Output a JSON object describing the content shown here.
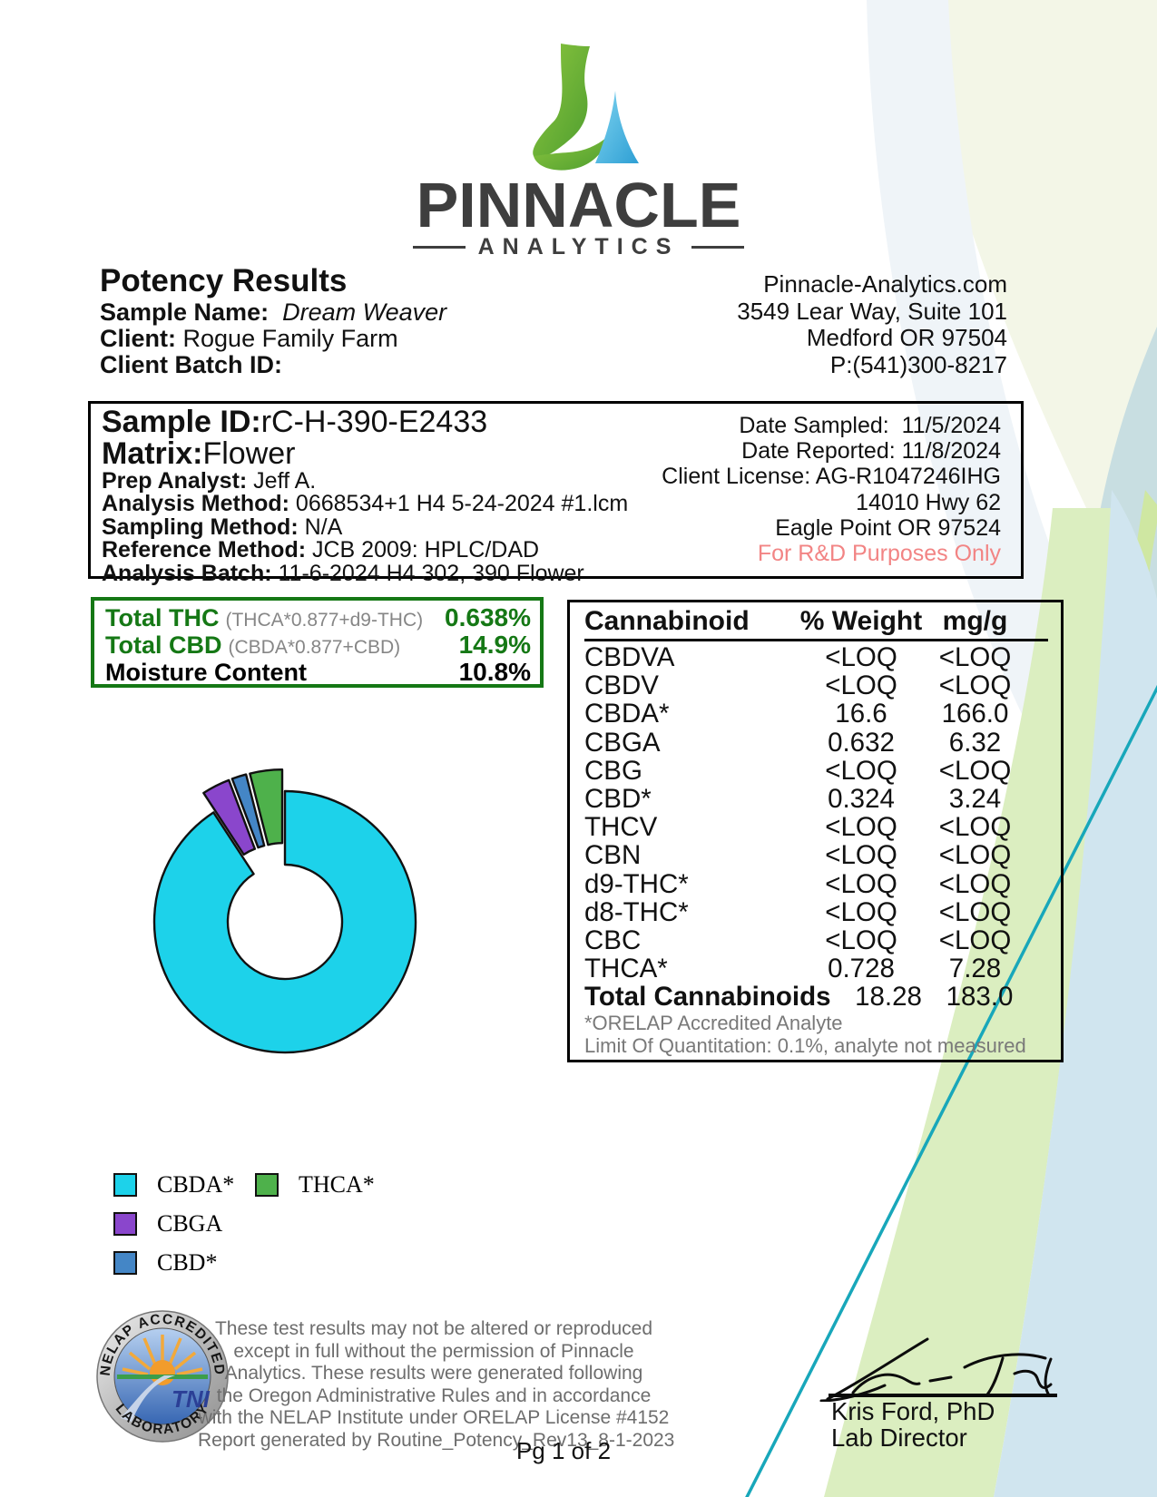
{
  "logo": {
    "line1": "PINNACLE",
    "line2": "ANALYTICS"
  },
  "header": {
    "title": "Potency Results",
    "sample_name_label": "Sample Name:",
    "sample_name": "Dream Weaver",
    "client_label": "Client:",
    "client": "Rogue Family Farm",
    "client_batch_label": "Client Batch ID:",
    "contact": {
      "website": "Pinnacle-Analytics.com",
      "address1": "3549 Lear Way, Suite 101",
      "address2": "Medford OR 97504",
      "phone": "P:(541)300-8217"
    }
  },
  "sample_info": {
    "sample_id_label": "Sample ID:",
    "sample_id": "rC-H-390-E2433",
    "matrix_label": "Matrix:",
    "matrix": "Flower",
    "left_small_lines": [
      {
        "label": "Prep Analyst:",
        "value": " Jeff A."
      },
      {
        "label": "Analysis Method:",
        "value": " 0668534+1 H4 5-24-2024 #1.lcm"
      },
      {
        "label": "Sampling Method:",
        "value": " N/A"
      },
      {
        "label": "Reference Method:",
        "value": " JCB 2009: HPLC/DAD"
      },
      {
        "label": "Analysis Batch:",
        "value": " 11-6-2024 H4 302, 390 Flower"
      }
    ],
    "right_lines": [
      {
        "text": "Date Sampled:  11/5/2024"
      },
      {
        "text": "Date Reported: 11/8/2024"
      },
      {
        "text": "Client License: AG-R1047246IHG"
      },
      {
        "text": "14010 Hwy 62"
      },
      {
        "text": "Eagle Point OR 97524"
      },
      {
        "text": "For R&D Purposes Only",
        "color": "#f28484"
      }
    ]
  },
  "totals": {
    "border_color": "#157815",
    "rows": [
      {
        "label": "Total THC",
        "formula": "(THCA*0.877+d9-THC)",
        "value": "0.638%",
        "color": "#157815"
      },
      {
        "label": "Total CBD",
        "formula": "(CBDA*0.877+CBD)",
        "value": "14.9%",
        "color": "#157815"
      },
      {
        "label": "Moisture Content",
        "formula": "",
        "value": "10.8%",
        "color": "#000000"
      }
    ]
  },
  "cannabinoid_table": {
    "headers": [
      "Cannabinoid",
      "% Weight",
      "mg/g"
    ],
    "rows": [
      [
        "CBDVA",
        "<LOQ",
        "<LOQ"
      ],
      [
        "CBDV",
        "<LOQ",
        "<LOQ"
      ],
      [
        "CBDA*",
        "16.6",
        "166.0"
      ],
      [
        "CBGA",
        "0.632",
        "6.32"
      ],
      [
        "CBG",
        "<LOQ",
        "<LOQ"
      ],
      [
        "CBD*",
        "0.324",
        "3.24"
      ],
      [
        "THCV",
        "<LOQ",
        "<LOQ"
      ],
      [
        "CBN",
        "<LOQ",
        "<LOQ"
      ],
      [
        "d9-THC*",
        "<LOQ",
        "<LOQ"
      ],
      [
        "d8-THC*",
        "<LOQ",
        "<LOQ"
      ],
      [
        "CBC",
        "<LOQ",
        "<LOQ"
      ],
      [
        "THCA*",
        "0.728",
        "7.28"
      ]
    ],
    "total_row": {
      "label": "Total Cannabinoids",
      "weight": "18.28",
      "mgg": "183.0"
    },
    "footnotes": [
      "*ORELAP Accredited Analyte",
      "Limit Of Quantitation: 0.1%, analyte not measured"
    ]
  },
  "chart_data": {
    "type": "pie",
    "donut": true,
    "labels": [
      "CBDA*",
      "CBGA",
      "CBD*",
      "THCA*"
    ],
    "values": [
      16.6,
      0.632,
      0.324,
      0.728
    ],
    "colors": [
      "#1dd2ea",
      "#8a46cc",
      "#4486c6",
      "#4eb14b"
    ],
    "start_angle": 90,
    "direction": "counterclockwise",
    "plot_order": [
      "THCA*",
      "CBD*",
      "CBGA",
      "CBDA*"
    ],
    "exploded": [
      "THCA*",
      "CBD*",
      "CBGA"
    ],
    "legend_order": [
      "CBDA*",
      "THCA*",
      "CBGA",
      "CBD*"
    ]
  },
  "seal": {
    "top_text": "NELAP ACCREDITED",
    "bottom_text": "LABORATORY",
    "center_text": "TNI"
  },
  "disclaimer": {
    "lines": [
      "These test results may not be altered or reproduced",
      "except in full without the permission of Pinnacle",
      "Analytics. These results were generated following",
      "the Oregon Administrative Rules and in accordance",
      "with the NELAP Institute under ORELAP License #4152",
      "Report generated by Routine_Potency_Rev13_8-1-2023"
    ]
  },
  "signature": {
    "name": "Kris Ford, PhD",
    "title": "Lab Director"
  },
  "footer": {
    "page": "Pg 1 of 2"
  }
}
